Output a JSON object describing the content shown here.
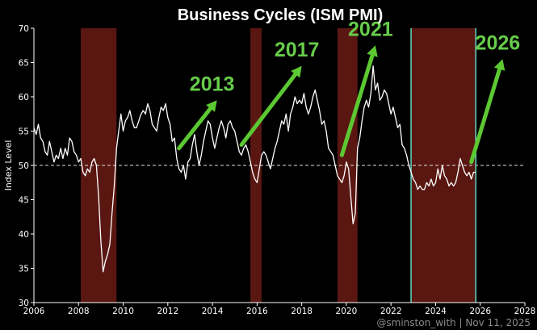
{
  "chart_data": {
    "type": "line",
    "title": "Business Cycles (ISM PMI)",
    "ylabel": "Index Level",
    "xlabel": "",
    "xlim": [
      2006,
      2028
    ],
    "ylim": [
      30,
      70
    ],
    "xticks": [
      2006,
      2008,
      2010,
      2012,
      2014,
      2016,
      2018,
      2020,
      2022,
      2024,
      2026,
      2028
    ],
    "yticks": [
      30,
      35,
      40,
      45,
      50,
      55,
      60,
      65,
      70
    ],
    "reference_line": 50,
    "grid": false,
    "recession_shading": [
      [
        2008.1,
        2009.7
      ],
      [
        2015.7,
        2016.2
      ],
      [
        2019.6,
        2020.5
      ],
      [
        2022.9,
        2025.8
      ]
    ],
    "vertical_markers": [
      2022.9,
      2025.8
    ],
    "series": [
      {
        "values": [
          [
            2006.0,
            55.5
          ],
          [
            2006.1,
            54.5
          ],
          [
            2006.2,
            56.0
          ],
          [
            2006.3,
            54.0
          ],
          [
            2006.4,
            53.5
          ],
          [
            2006.5,
            52.0
          ],
          [
            2006.6,
            51.5
          ],
          [
            2006.7,
            53.5
          ],
          [
            2006.8,
            52.0
          ],
          [
            2006.9,
            50.5
          ],
          [
            2007.0,
            51.5
          ],
          [
            2007.1,
            51.0
          ],
          [
            2007.2,
            52.5
          ],
          [
            2007.3,
            51.0
          ],
          [
            2007.4,
            52.5
          ],
          [
            2007.5,
            51.5
          ],
          [
            2007.6,
            54.0
          ],
          [
            2007.7,
            53.5
          ],
          [
            2007.8,
            52.0
          ],
          [
            2007.9,
            51.5
          ],
          [
            2008.0,
            50.5
          ],
          [
            2008.1,
            51.0
          ],
          [
            2008.2,
            49.0
          ],
          [
            2008.3,
            48.5
          ],
          [
            2008.4,
            49.5
          ],
          [
            2008.5,
            49.0
          ],
          [
            2008.6,
            50.5
          ],
          [
            2008.7,
            51.0
          ],
          [
            2008.8,
            50.0
          ],
          [
            2008.9,
            45.5
          ],
          [
            2009.0,
            39.0
          ],
          [
            2009.1,
            34.5
          ],
          [
            2009.2,
            36.0
          ],
          [
            2009.3,
            37.0
          ],
          [
            2009.4,
            38.5
          ],
          [
            2009.5,
            43.0
          ],
          [
            2009.6,
            47.0
          ],
          [
            2009.7,
            52.5
          ],
          [
            2009.8,
            55.0
          ],
          [
            2009.9,
            57.5
          ],
          [
            2010.0,
            55.0
          ],
          [
            2010.1,
            56.5
          ],
          [
            2010.2,
            57.0
          ],
          [
            2010.3,
            58.0
          ],
          [
            2010.4,
            56.5
          ],
          [
            2010.5,
            55.5
          ],
          [
            2010.6,
            55.5
          ],
          [
            2010.7,
            56.5
          ],
          [
            2010.8,
            57.5
          ],
          [
            2010.9,
            58.0
          ],
          [
            2011.0,
            57.5
          ],
          [
            2011.1,
            59.0
          ],
          [
            2011.2,
            58.0
          ],
          [
            2011.3,
            56.0
          ],
          [
            2011.4,
            55.5
          ],
          [
            2011.5,
            55.0
          ],
          [
            2011.6,
            57.0
          ],
          [
            2011.7,
            58.5
          ],
          [
            2011.8,
            58.0
          ],
          [
            2011.9,
            59.0
          ],
          [
            2012.0,
            57.0
          ],
          [
            2012.1,
            56.0
          ],
          [
            2012.2,
            53.5
          ],
          [
            2012.3,
            54.0
          ],
          [
            2012.4,
            51.0
          ],
          [
            2012.5,
            49.5
          ],
          [
            2012.6,
            49.0
          ],
          [
            2012.7,
            50.0
          ],
          [
            2012.8,
            48.0
          ],
          [
            2012.9,
            50.5
          ],
          [
            2013.0,
            51.0
          ],
          [
            2013.1,
            53.0
          ],
          [
            2013.2,
            54.5
          ],
          [
            2013.3,
            52.0
          ],
          [
            2013.4,
            50.0
          ],
          [
            2013.5,
            51.5
          ],
          [
            2013.6,
            53.5
          ],
          [
            2013.7,
            55.0
          ],
          [
            2013.8,
            56.5
          ],
          [
            2013.9,
            56.0
          ],
          [
            2014.0,
            54.0
          ],
          [
            2014.1,
            52.5
          ],
          [
            2014.2,
            54.0
          ],
          [
            2014.3,
            55.5
          ],
          [
            2014.4,
            56.5
          ],
          [
            2014.5,
            55.5
          ],
          [
            2014.6,
            54.0
          ],
          [
            2014.7,
            56.0
          ],
          [
            2014.8,
            56.5
          ],
          [
            2014.9,
            55.5
          ],
          [
            2015.0,
            55.0
          ],
          [
            2015.1,
            53.5
          ],
          [
            2015.2,
            52.0
          ],
          [
            2015.3,
            51.5
          ],
          [
            2015.4,
            52.5
          ],
          [
            2015.5,
            53.0
          ],
          [
            2015.6,
            52.0
          ],
          [
            2015.7,
            50.5
          ],
          [
            2015.8,
            49.0
          ],
          [
            2015.9,
            48.0
          ],
          [
            2016.0,
            47.5
          ],
          [
            2016.1,
            49.5
          ],
          [
            2016.2,
            51.5
          ],
          [
            2016.3,
            52.0
          ],
          [
            2016.4,
            51.5
          ],
          [
            2016.5,
            50.5
          ],
          [
            2016.6,
            49.5
          ],
          [
            2016.7,
            51.0
          ],
          [
            2016.8,
            52.5
          ],
          [
            2016.9,
            53.5
          ],
          [
            2017.0,
            55.0
          ],
          [
            2017.1,
            56.5
          ],
          [
            2017.2,
            56.0
          ],
          [
            2017.3,
            57.5
          ],
          [
            2017.4,
            55.0
          ],
          [
            2017.5,
            57.5
          ],
          [
            2017.6,
            58.5
          ],
          [
            2017.7,
            60.0
          ],
          [
            2017.8,
            59.0
          ],
          [
            2017.9,
            59.5
          ],
          [
            2018.0,
            59.0
          ],
          [
            2018.1,
            60.5
          ],
          [
            2018.2,
            58.5
          ],
          [
            2018.3,
            57.5
          ],
          [
            2018.4,
            58.5
          ],
          [
            2018.5,
            60.0
          ],
          [
            2018.6,
            61.0
          ],
          [
            2018.7,
            59.5
          ],
          [
            2018.8,
            58.0
          ],
          [
            2018.9,
            56.0
          ],
          [
            2019.0,
            56.5
          ],
          [
            2019.1,
            55.0
          ],
          [
            2019.2,
            52.5
          ],
          [
            2019.3,
            52.0
          ],
          [
            2019.4,
            51.5
          ],
          [
            2019.5,
            50.0
          ],
          [
            2019.6,
            48.5
          ],
          [
            2019.7,
            48.0
          ],
          [
            2019.8,
            47.5
          ],
          [
            2019.9,
            48.5
          ],
          [
            2020.0,
            50.5
          ],
          [
            2020.1,
            49.5
          ],
          [
            2020.2,
            45.5
          ],
          [
            2020.3,
            41.5
          ],
          [
            2020.4,
            43.0
          ],
          [
            2020.5,
            52.5
          ],
          [
            2020.6,
            54.0
          ],
          [
            2020.7,
            56.5
          ],
          [
            2020.8,
            58.5
          ],
          [
            2020.9,
            59.5
          ],
          [
            2021.0,
            58.5
          ],
          [
            2021.1,
            60.5
          ],
          [
            2021.2,
            64.5
          ],
          [
            2021.3,
            61.0
          ],
          [
            2021.4,
            62.0
          ],
          [
            2021.5,
            59.5
          ],
          [
            2021.6,
            60.0
          ],
          [
            2021.7,
            61.0
          ],
          [
            2021.8,
            60.5
          ],
          [
            2021.9,
            59.0
          ],
          [
            2022.0,
            57.5
          ],
          [
            2022.1,
            58.5
          ],
          [
            2022.2,
            57.0
          ],
          [
            2022.3,
            55.5
          ],
          [
            2022.4,
            56.0
          ],
          [
            2022.5,
            53.0
          ],
          [
            2022.6,
            52.5
          ],
          [
            2022.7,
            51.5
          ],
          [
            2022.8,
            50.0
          ],
          [
            2022.9,
            49.0
          ],
          [
            2023.0,
            48.0
          ],
          [
            2023.1,
            47.5
          ],
          [
            2023.2,
            46.5
          ],
          [
            2023.3,
            47.0
          ],
          [
            2023.4,
            46.5
          ],
          [
            2023.5,
            46.5
          ],
          [
            2023.6,
            47.5
          ],
          [
            2023.7,
            47.0
          ],
          [
            2023.8,
            48.0
          ],
          [
            2023.9,
            47.0
          ],
          [
            2024.0,
            47.5
          ],
          [
            2024.1,
            49.5
          ],
          [
            2024.2,
            48.0
          ],
          [
            2024.3,
            50.0
          ],
          [
            2024.4,
            48.5
          ],
          [
            2024.5,
            48.0
          ],
          [
            2024.6,
            47.0
          ],
          [
            2024.7,
            47.5
          ],
          [
            2024.8,
            47.0
          ],
          [
            2024.9,
            47.5
          ],
          [
            2025.0,
            49.0
          ],
          [
            2025.1,
            51.0
          ],
          [
            2025.2,
            50.0
          ],
          [
            2025.3,
            49.0
          ],
          [
            2025.4,
            48.5
          ],
          [
            2025.5,
            49.0
          ],
          [
            2025.6,
            48.0
          ],
          [
            2025.7,
            49.0
          ],
          [
            2025.8,
            49.0
          ]
        ]
      }
    ],
    "annotations": [
      {
        "text": "2013",
        "arrow_from": [
          2012.5,
          52.5
        ],
        "arrow_to": [
          2014.2,
          59.5
        ]
      },
      {
        "text": "2017",
        "arrow_from": [
          2015.3,
          53.0
        ],
        "arrow_to": [
          2018.0,
          64.5
        ]
      },
      {
        "text": "2021",
        "arrow_from": [
          2019.8,
          51.5
        ],
        "arrow_to": [
          2021.3,
          67.5
        ]
      },
      {
        "text": "2026",
        "arrow_from": [
          2025.6,
          50.5
        ],
        "arrow_to": [
          2027.0,
          65.5
        ]
      }
    ],
    "colors": {
      "background": "#000000",
      "line": "#ffffff",
      "recession": "#5a1712",
      "marker": "#5fd6c4",
      "arrow": "#5cc832",
      "annotation_text": "#66cc4a",
      "axis": "#ffffff",
      "reference": "#dddddd"
    }
  },
  "watermark": "@sminston_with  |  Nov 11, 2025"
}
